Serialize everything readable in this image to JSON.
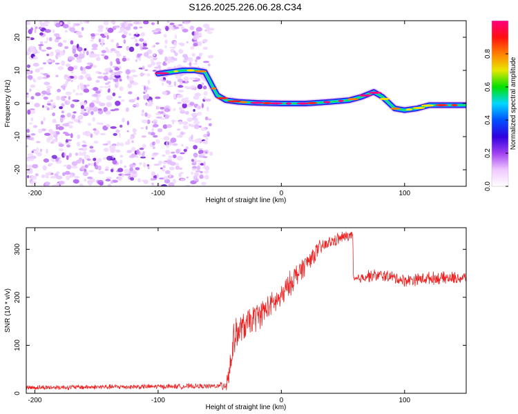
{
  "title": "S126.2025.226.06.28.C34",
  "chart_data": [
    {
      "type": "heatmap",
      "title": "S126.2025.226.06.28.C34",
      "xlabel": "Height of straight line (km)",
      "ylabel": "Frequency (Hz)",
      "xlim": [
        -207,
        150
      ],
      "ylim": [
        -25,
        25
      ],
      "xticks": [
        -200,
        -100,
        0,
        100
      ],
      "yticks": [
        -20,
        -10,
        0,
        10,
        20
      ],
      "noise_region_x": [
        -207,
        -58
      ],
      "trace": {
        "x": [
          -100,
          -90,
          -80,
          -70,
          -62,
          -57,
          -52,
          -45,
          -35,
          -20,
          0,
          20,
          40,
          55,
          65,
          75,
          82,
          92,
          100,
          110,
          120,
          150
        ],
        "y": [
          9,
          9.5,
          10,
          10,
          9.5,
          6,
          2.5,
          1,
          0.5,
          0.2,
          0,
          0,
          0.5,
          1,
          2,
          3.5,
          2,
          -1.5,
          -2,
          -1.5,
          -0.5,
          -0.5
        ]
      },
      "colorbar": {
        "label": "Normalized spectral amplitude",
        "range": [
          0,
          1
        ],
        "ticks": [
          0.0,
          0.2,
          0.4,
          0.6,
          0.8
        ],
        "colors": [
          "#ffffff",
          "#f0c8ff",
          "#a040f0",
          "#3000e0",
          "#0050ff",
          "#00d8ff",
          "#00e000",
          "#e8e800",
          "#ff8000",
          "#ff1010",
          "#ff0080"
        ]
      }
    },
    {
      "type": "line",
      "title": "",
      "xlabel": "Height of straight line (km)",
      "ylabel": "SNR (10 * v/v)",
      "xlim": [
        -207,
        150
      ],
      "ylim": [
        0,
        345
      ],
      "xticks": [
        -200,
        -100,
        0,
        100
      ],
      "yticks": [
        0,
        100,
        200,
        300
      ],
      "line_color": "#ee2222",
      "series": [
        {
          "name": "SNR",
          "x": [
            -207,
            -50,
            -45,
            -42,
            -38,
            -30,
            -20,
            -10,
            0,
            5,
            10,
            20,
            30,
            40,
            50,
            58,
            58.5,
            70,
            85,
            100,
            120,
            150
          ],
          "y": [
            12,
            15,
            20,
            50,
            120,
            140,
            160,
            180,
            200,
            220,
            240,
            270,
            300,
            315,
            325,
            330,
            235,
            245,
            245,
            235,
            240,
            240
          ],
          "noise": [
            6,
            6,
            25,
            40,
            40,
            35,
            35,
            30,
            30,
            30,
            30,
            25,
            20,
            15,
            15,
            10,
            10,
            15,
            15,
            15,
            15,
            15
          ]
        }
      ]
    }
  ]
}
